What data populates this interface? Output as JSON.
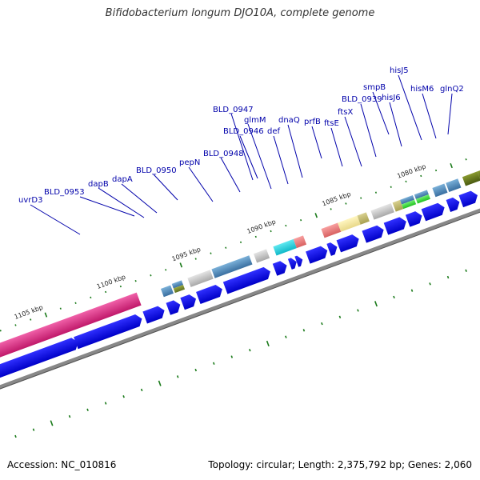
{
  "title": "Bifidobacterium longum DJO10A, complete genome",
  "footer": {
    "accession": "Accession: NC_010816",
    "summary": "Topology: circular; Length: 2,375,792 bp; Genes: 2,060"
  },
  "scale_labels": [
    "1105 kbp",
    "1100 kbp",
    "1095 kbp",
    "1090 kbp",
    "1085 kbp",
    "1080 kbp"
  ],
  "gene_labels": [
    "uvrD3",
    "BLD_0953",
    "dapB",
    "dapA",
    "BLD_0950",
    "pepN",
    "BLD_0948",
    "BLD_0946",
    "BLD_0947",
    "glmM",
    "def",
    "dnaQ",
    "prfB",
    "ftsE",
    "ftsX",
    "BLD_0939",
    "smpB",
    "hisJ6",
    "hisJ5",
    "hisM6",
    "glnQ2"
  ],
  "colors": {
    "label": "#0000aa",
    "forward_gene": "#0000ff",
    "backbone": "#808080",
    "tick": "#1a7a1a",
    "uvrD3_block": "#e0207a"
  }
}
